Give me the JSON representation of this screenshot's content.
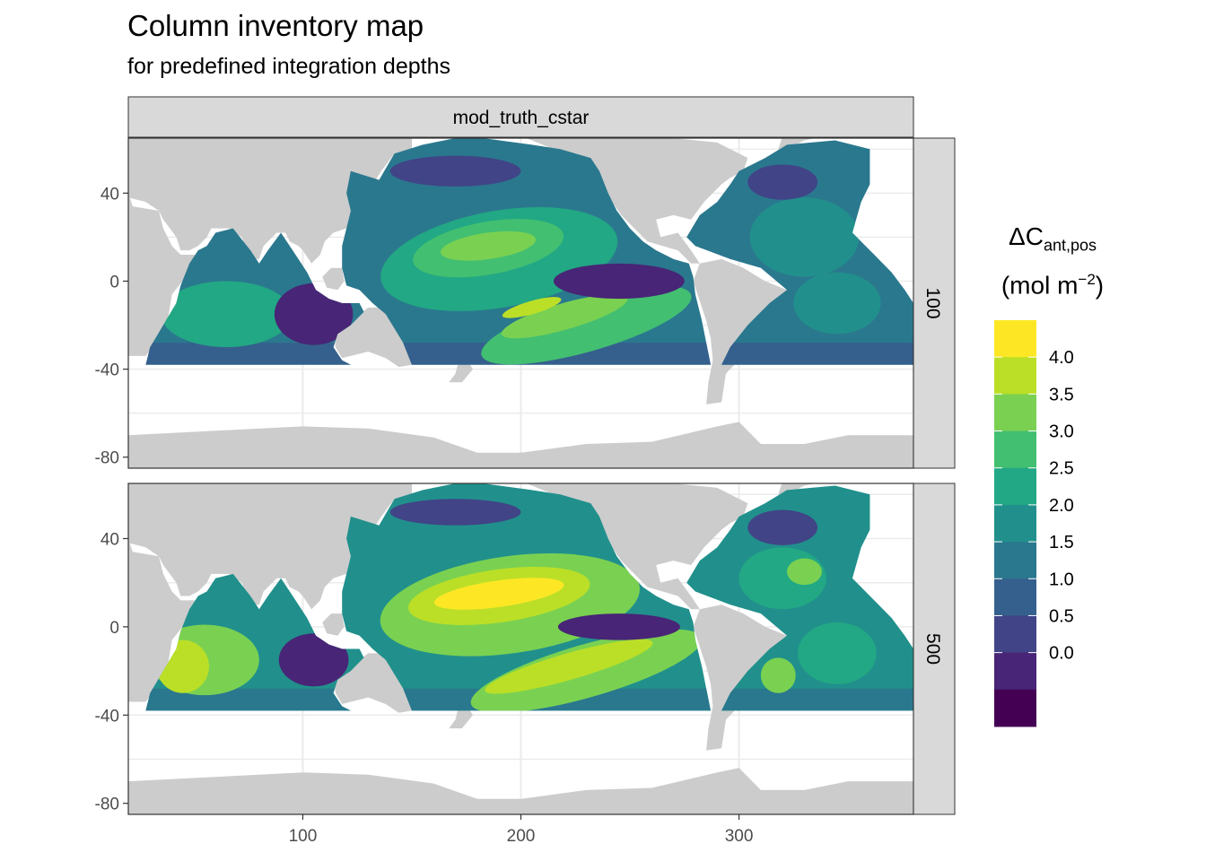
{
  "title": "Column inventory map",
  "subtitle": "for predefined integration depths",
  "chart_data": {
    "type": "heatmap",
    "facet_column_label": "mod_truth_cstar",
    "facet_row_labels": [
      "100",
      "500"
    ],
    "x_ticks": [
      100,
      200,
      300
    ],
    "y_ticks": [
      40,
      0,
      -40,
      -80
    ],
    "xlim": [
      20,
      380
    ],
    "ylim": [
      -85,
      65
    ],
    "legend": {
      "title_main": "ΔC",
      "title_sub": "ant,pos",
      "unit_open": "(mol m",
      "unit_sup": "−2",
      "unit_close": ")",
      "breaks": [
        "4.0",
        "3.5",
        "3.0",
        "2.5",
        "2.0",
        "1.5",
        "1.0",
        "0.5",
        "0.0"
      ],
      "colors": [
        "#440154",
        "#482576",
        "#414487",
        "#35608D",
        "#2A788E",
        "#21908C",
        "#22A884",
        "#43BF71",
        "#7AD151",
        "#BBDF27",
        "#FDE725"
      ]
    },
    "colors": {
      "land": "#cccccc",
      "panel_bg": "#ffffff",
      "strip_bg": "#d9d9d9",
      "grid": "#ebebeb"
    }
  }
}
